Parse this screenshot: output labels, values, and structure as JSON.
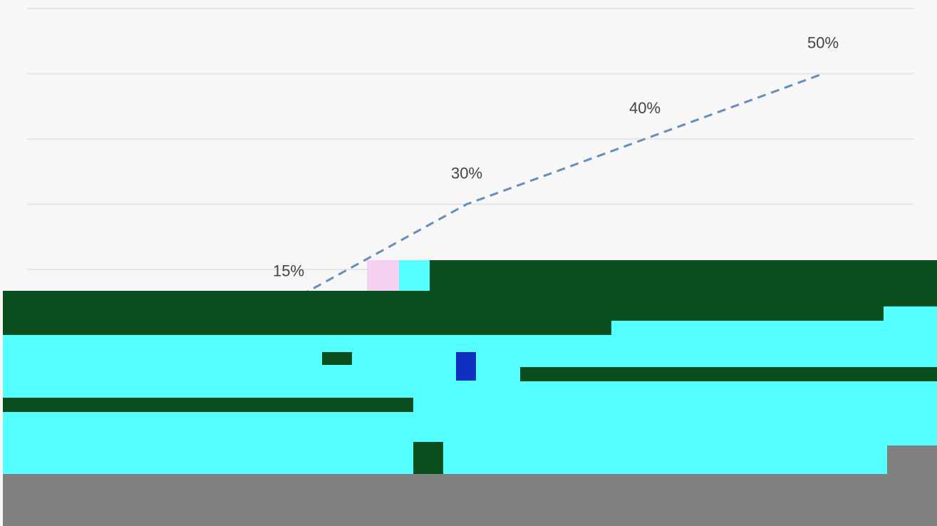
{
  "chart_data": {
    "type": "line",
    "categories": [
      null,
      null,
      null,
      null
    ],
    "values": [
      15,
      30,
      40,
      50
    ],
    "value_labels": [
      "15%",
      "30%",
      "40%",
      "50%"
    ],
    "color": "#6690bb",
    "dashed": true,
    "ylim": [
      0,
      60
    ],
    "yticks": [
      0,
      10,
      20,
      30,
      40,
      50,
      60
    ],
    "grid": true
  }
}
